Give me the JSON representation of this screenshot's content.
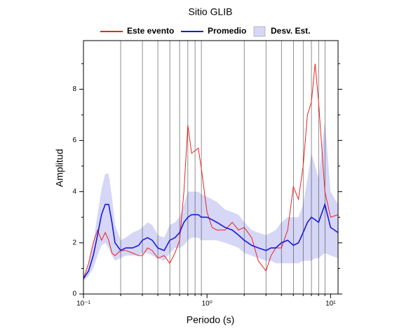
{
  "chart_data": {
    "type": "line",
    "title": "Sitio GLIB",
    "xlabel": "Periodo (s)",
    "ylabel": "Amplitud",
    "xscale": "log",
    "grid": "x-minor",
    "x": [
      0.1,
      0.11,
      0.12,
      0.13,
      0.14,
      0.15,
      0.16,
      0.17,
      0.18,
      0.2,
      0.22,
      0.25,
      0.28,
      0.3,
      0.33,
      0.36,
      0.4,
      0.45,
      0.5,
      0.55,
      0.6,
      0.65,
      0.7,
      0.75,
      0.8,
      0.85,
      0.9,
      1.0,
      1.1,
      1.2,
      1.4,
      1.6,
      1.8,
      2.0,
      2.3,
      2.6,
      3.0,
      3.3,
      3.6,
      4.0,
      4.5,
      5.0,
      5.5,
      6.0,
      6.5,
      7.0,
      7.5,
      8.0,
      9.0,
      10.0,
      11.5
    ],
    "series": [
      {
        "name": "Este evento",
        "color": "#ee2222",
        "values": [
          0.6,
          1.2,
          2.0,
          2.5,
          2.1,
          2.4,
          2.1,
          1.6,
          1.5,
          1.7,
          1.7,
          1.6,
          1.5,
          1.5,
          1.8,
          1.7,
          1.4,
          1.5,
          1.2,
          1.6,
          2.1,
          4.0,
          6.6,
          5.5,
          5.6,
          5.7,
          4.9,
          3.2,
          2.6,
          2.5,
          2.5,
          2.8,
          2.5,
          2.6,
          2.2,
          1.3,
          0.9,
          1.5,
          1.8,
          1.8,
          2.5,
          4.2,
          3.7,
          5.0,
          7.0,
          7.5,
          9.0,
          7.5,
          4.0,
          3.0,
          3.1
        ]
      },
      {
        "name": "Promedio",
        "color": "#1a1ad8",
        "values": [
          0.6,
          0.9,
          1.5,
          2.3,
          3.1,
          3.5,
          3.5,
          2.8,
          2.0,
          1.7,
          1.8,
          1.8,
          1.9,
          2.1,
          2.2,
          2.1,
          1.8,
          1.7,
          2.1,
          2.2,
          2.4,
          2.8,
          3.0,
          3.1,
          3.1,
          3.1,
          3.0,
          3.0,
          2.9,
          2.8,
          2.6,
          2.5,
          2.3,
          2.1,
          1.9,
          1.8,
          1.7,
          1.8,
          1.8,
          2.0,
          2.1,
          1.9,
          2.0,
          2.4,
          2.8,
          3.0,
          2.9,
          2.8,
          3.5,
          2.6,
          2.4
        ]
      },
      {
        "name": "Desv. Est.",
        "color": "#d6d6f6",
        "type": "band",
        "lower": [
          0.5,
          0.7,
          1.0,
          1.5,
          1.9,
          2.0,
          1.8,
          1.5,
          1.3,
          1.4,
          1.5,
          1.5,
          1.5,
          1.6,
          1.6,
          1.5,
          1.4,
          1.3,
          1.6,
          1.8,
          1.8,
          1.9,
          2.1,
          2.2,
          2.2,
          2.2,
          2.1,
          2.1,
          2.1,
          2.1,
          2.0,
          1.9,
          1.8,
          1.6,
          1.5,
          1.4,
          1.3,
          1.3,
          1.2,
          1.2,
          1.2,
          1.2,
          1.2,
          1.3,
          1.3,
          1.3,
          1.4,
          1.4,
          1.6,
          1.5,
          1.4
        ],
        "upper": [
          0.7,
          1.1,
          2.0,
          3.1,
          4.1,
          4.7,
          4.7,
          3.8,
          2.7,
          2.1,
          2.2,
          2.4,
          2.5,
          2.6,
          2.8,
          2.7,
          2.3,
          2.2,
          2.7,
          2.8,
          3.0,
          3.5,
          4.0,
          4.0,
          4.0,
          4.0,
          3.9,
          3.8,
          3.7,
          3.6,
          3.3,
          3.2,
          3.1,
          2.8,
          2.5,
          2.4,
          2.3,
          2.4,
          2.5,
          2.8,
          3.0,
          3.0,
          3.0,
          3.5,
          4.5,
          5.5,
          5.0,
          4.5,
          6.8,
          4.0,
          3.5
        ]
      }
    ],
    "xlim": [
      0.1,
      11.5
    ],
    "ylim": [
      0,
      9.9
    ],
    "xticks": [
      {
        "value": 0.1,
        "label": "10⁻¹"
      },
      {
        "value": 1,
        "label": "10⁰"
      },
      {
        "value": 10,
        "label": "10¹"
      }
    ],
    "x_grid": [
      0.2,
      0.3,
      0.4,
      0.5,
      0.6,
      0.7,
      0.8,
      0.9,
      2,
      3,
      4,
      5,
      6,
      7,
      8,
      9
    ],
    "yticks": [
      0,
      2,
      4,
      6,
      8
    ],
    "yminor": [
      1,
      3,
      5,
      7,
      9
    ]
  }
}
